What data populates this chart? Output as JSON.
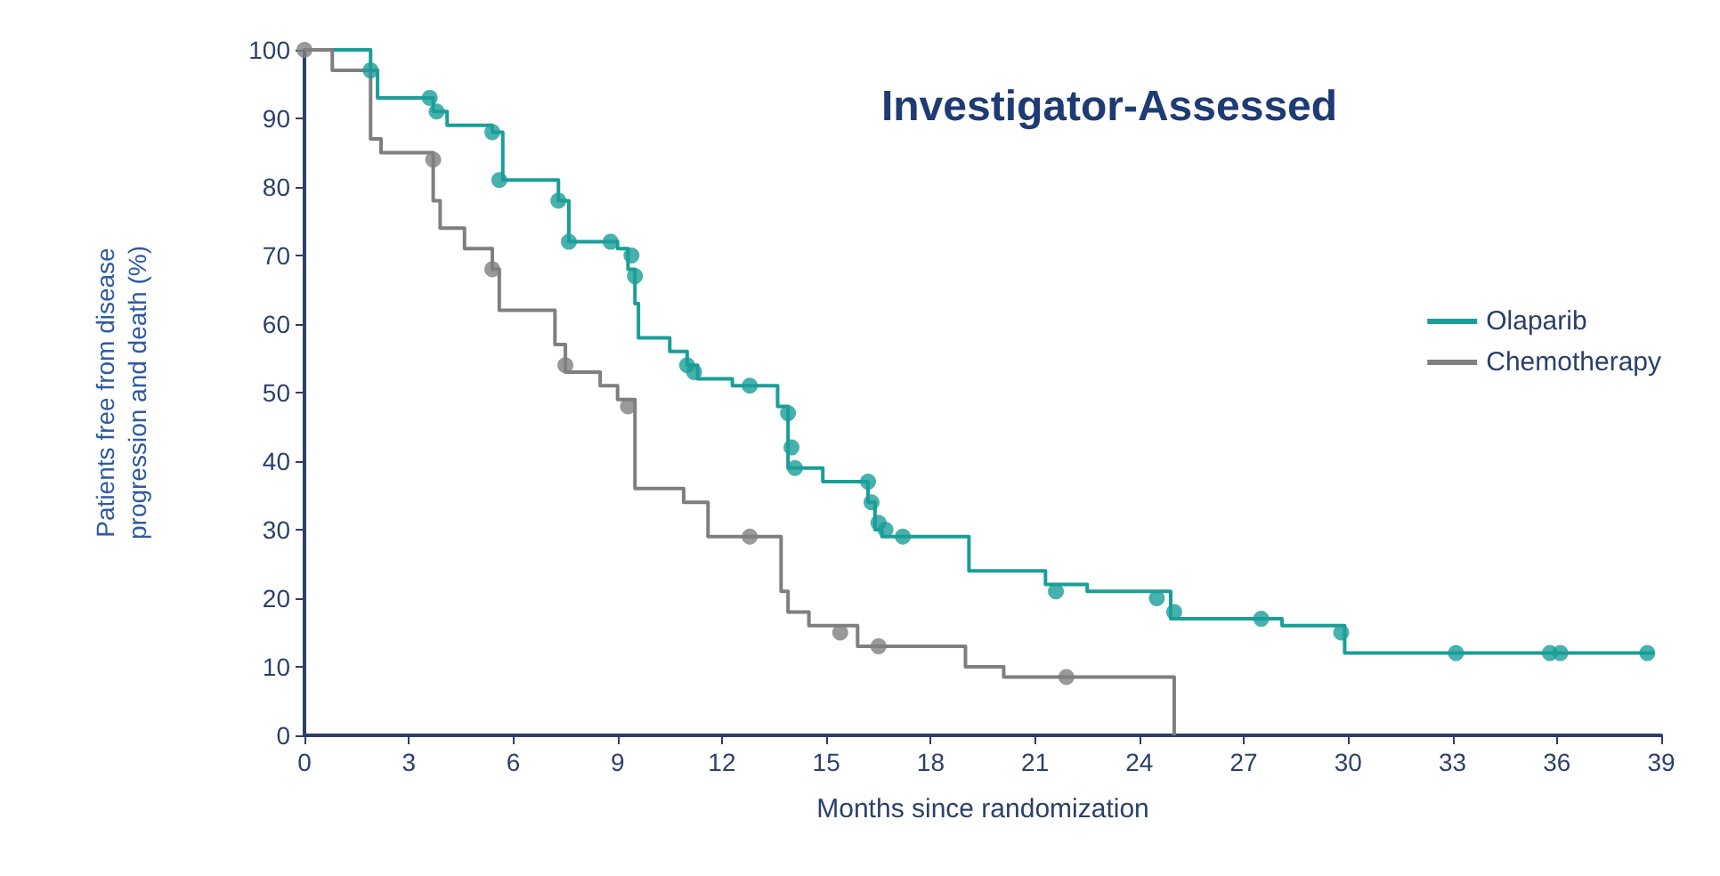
{
  "chart_data": {
    "type": "step",
    "title": "Investigator-Assessed",
    "xlabel": "Months since randomization",
    "ylabel": "Patients free from disease\nprogression and death (%)",
    "xlim": [
      0,
      39
    ],
    "xticks": [
      0,
      3,
      6,
      9,
      12,
      15,
      18,
      21,
      24,
      27,
      30,
      33,
      36,
      39
    ],
    "ylim": [
      0,
      100
    ],
    "yticks": [
      0,
      10,
      20,
      30,
      40,
      50,
      60,
      70,
      80,
      90,
      100
    ],
    "grid": false,
    "legend": "right",
    "line_style": "solid",
    "series": [
      {
        "name": "Olaparib",
        "color": "#1a9e98",
        "marker": "none",
        "x": [
          0,
          1.9,
          2.1,
          3.7,
          4.1,
          5.4,
          5.7,
          7.3,
          7.6,
          9.0,
          9.3,
          9.5,
          9.6,
          10.5,
          11.0,
          11.3,
          12.3,
          13.6,
          13.9,
          14.9,
          16.2,
          16.4,
          16.6,
          17.4,
          19.1,
          21.3,
          22.5,
          24.9,
          28.1,
          29.9,
          38.8
        ],
        "values": [
          100,
          97,
          93,
          91,
          89,
          88,
          81,
          78,
          72,
          71,
          68,
          63,
          58,
          56,
          54,
          52,
          51,
          48,
          39,
          37,
          34,
          30,
          29,
          29,
          24,
          22,
          21,
          17,
          16,
          12,
          12
        ]
      },
      {
        "name": "Chemotherapy",
        "color": "#7f7f7f",
        "marker": "none",
        "x": [
          0,
          0.8,
          1.9,
          2.2,
          3.7,
          3.9,
          4.6,
          5.4,
          5.6,
          7.2,
          7.5,
          8.5,
          9.0,
          9.5,
          10.9,
          11.6,
          13.7,
          13.9,
          14.5,
          15.9,
          19.0,
          20.1,
          25.0
        ],
        "values": [
          100,
          97,
          87,
          85,
          78,
          74,
          71,
          68,
          62,
          57,
          53,
          51,
          49,
          36,
          34,
          29,
          21,
          18,
          16,
          13,
          10,
          8.5,
          0
        ]
      },
      {
        "type": "scatter",
        "color": "#1a9e98",
        "marker": "circle",
        "x": [
          1.9,
          3.6,
          3.8,
          5.4,
          5.6,
          7.3,
          7.6,
          8.8,
          9.4,
          9.5,
          11.0,
          11.2,
          12.8,
          13.9,
          14.0,
          14.1,
          16.2,
          16.3,
          16.5,
          16.7,
          17.2,
          21.6,
          24.5,
          25.0,
          27.5,
          29.8,
          33.1,
          35.8,
          36.1,
          38.6
        ],
        "values": [
          97,
          93,
          91,
          88,
          81,
          78,
          72,
          72,
          70,
          67,
          54,
          53,
          51,
          47,
          42,
          39,
          37,
          34,
          31,
          30,
          29,
          21,
          20,
          18,
          17,
          15,
          12,
          12,
          12,
          12
        ]
      },
      {
        "type": "scatter",
        "color": "#7f7f7f",
        "marker": "circle",
        "x": [
          0,
          3.7,
          5.4,
          7.5,
          9.3,
          12.8,
          15.4,
          16.5,
          21.9
        ],
        "values": [
          100,
          84,
          68,
          54,
          48,
          29,
          15,
          13,
          8.5
        ]
      }
    ]
  }
}
